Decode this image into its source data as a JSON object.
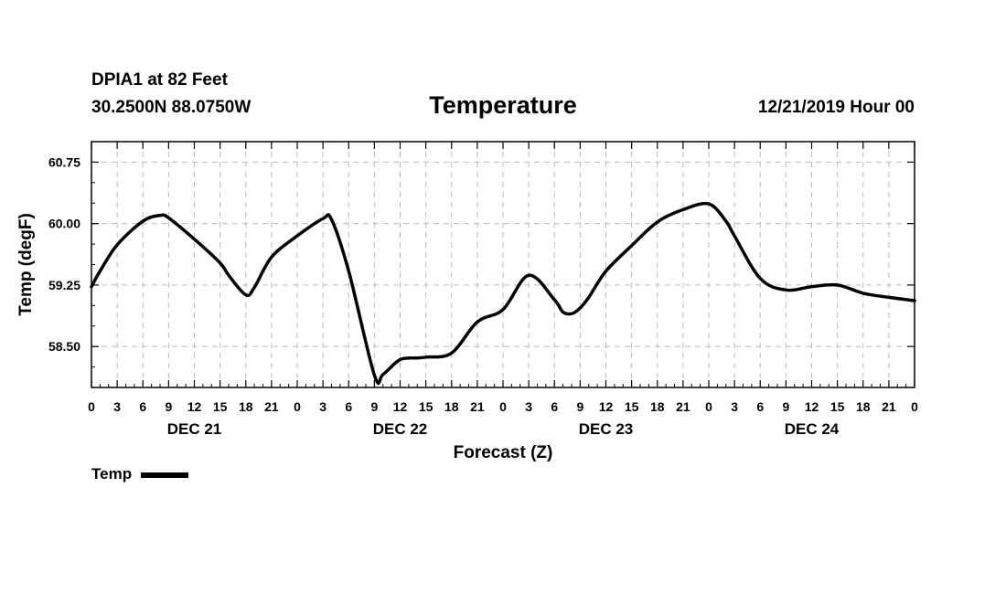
{
  "header": {
    "station": "DPIA1 at 82 Feet",
    "coords": "30.2500N 88.0750W",
    "title": "Temperature",
    "datetime": "12/21/2019 Hour 00"
  },
  "legend": {
    "label": "Temp"
  },
  "chart_data": {
    "type": "line",
    "title": "Temperature",
    "xlabel": "Forecast (Z)",
    "ylabel": "Temp (degF)",
    "ylim": [
      58.0,
      61.0
    ],
    "xlim": [
      0,
      96
    ],
    "yticks": [
      58.5,
      59.25,
      60.0,
      60.75
    ],
    "ytick_labels": [
      "58.50",
      "59.25",
      "60.00",
      "60.75"
    ],
    "xtick_labels": [
      "0",
      "3",
      "6",
      "9",
      "12",
      "15",
      "18",
      "21",
      "0",
      "3",
      "6",
      "9",
      "12",
      "15",
      "18",
      "21",
      "0",
      "3",
      "6",
      "9",
      "12",
      "15",
      "18",
      "21",
      "0",
      "3",
      "6",
      "9",
      "12",
      "15",
      "18",
      "21",
      "0"
    ],
    "day_labels": [
      {
        "label": "DEC 21",
        "hour": 12
      },
      {
        "label": "DEC 22",
        "hour": 36
      },
      {
        "label": "DEC 23",
        "hour": 60
      },
      {
        "label": "DEC 24",
        "hour": 84
      }
    ],
    "grid": true,
    "legend_position": "bottom-left",
    "series": [
      {
        "name": "Temp",
        "color": "#000000",
        "x": [
          0,
          1,
          3,
          6,
          8,
          9,
          12,
          15,
          16,
          18,
          19,
          21,
          24,
          27,
          28,
          30,
          33,
          34,
          36,
          38,
          39,
          42,
          45,
          48,
          51,
          54,
          55,
          56,
          57,
          58,
          60,
          63,
          66,
          69,
          72,
          74,
          75,
          78,
          81,
          84,
          87,
          90,
          93,
          96
        ],
        "y": [
          59.23,
          59.42,
          59.74,
          60.03,
          60.1,
          60.07,
          59.81,
          59.52,
          59.37,
          59.13,
          59.22,
          59.59,
          59.85,
          60.06,
          60.05,
          59.42,
          58.15,
          58.16,
          58.34,
          58.36,
          58.37,
          58.42,
          58.8,
          58.95,
          59.37,
          59.07,
          58.92,
          58.9,
          58.97,
          59.1,
          59.42,
          59.73,
          60.02,
          60.17,
          60.24,
          60.03,
          59.85,
          59.33,
          59.19,
          59.23,
          59.25,
          59.15,
          59.1,
          59.06
        ]
      }
    ]
  }
}
